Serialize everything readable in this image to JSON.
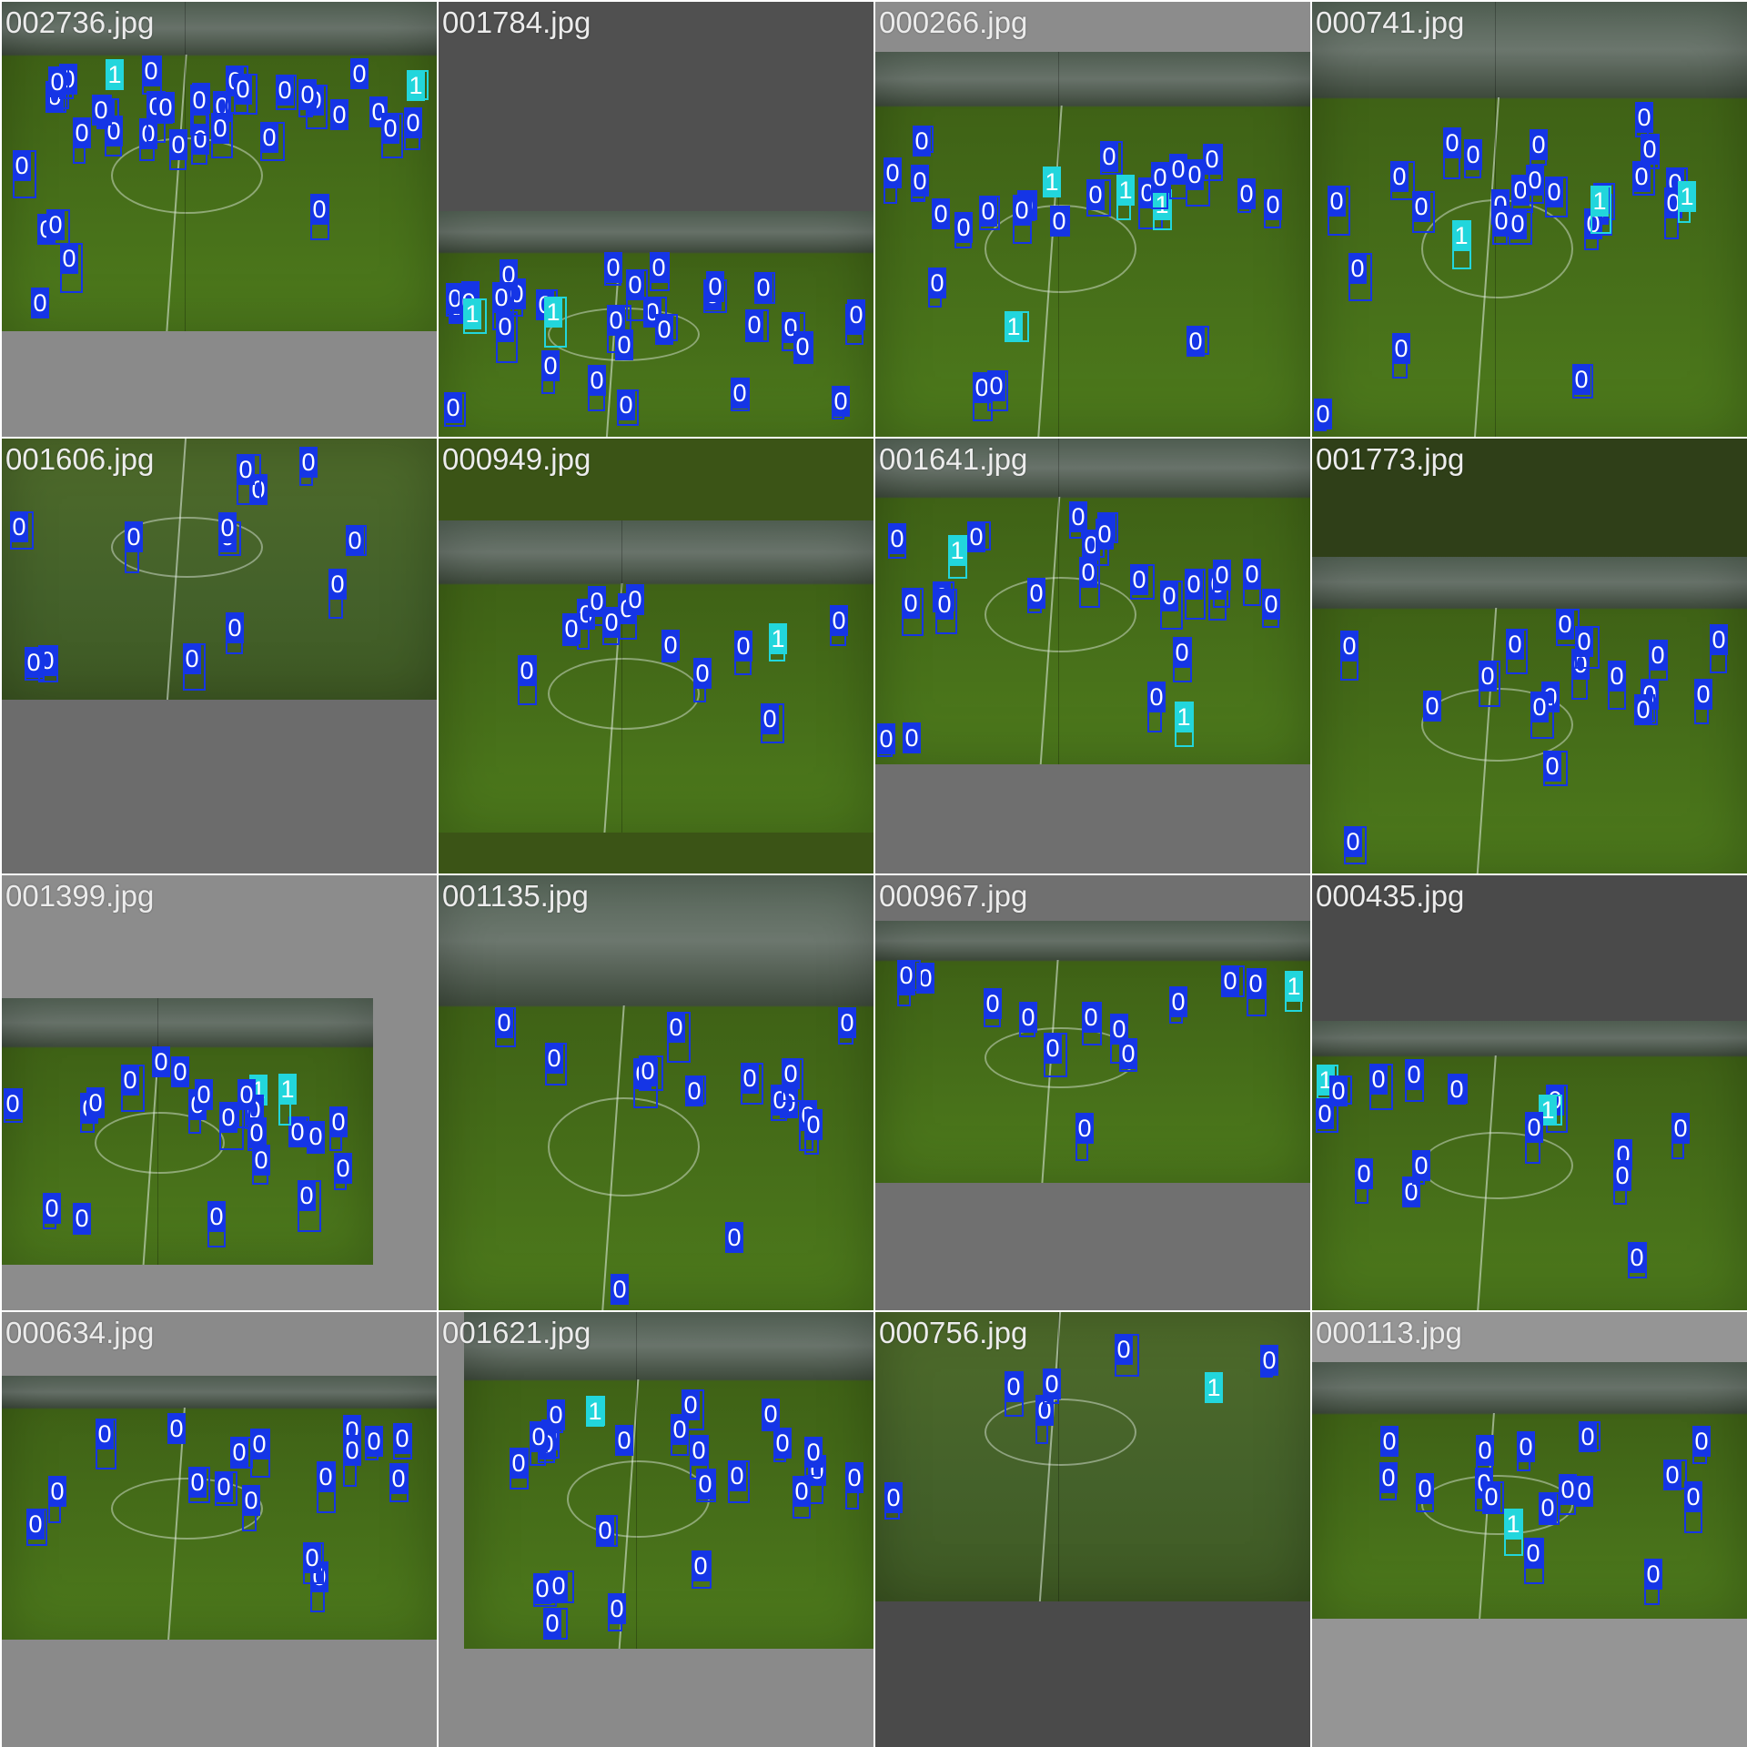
{
  "classes": [
    {
      "id": "0",
      "color": "#1535e6"
    },
    {
      "id": "1",
      "color": "#22d6dc"
    }
  ],
  "tiles": [
    {
      "filename": "002736.jpg",
      "background": "#8a8a8a",
      "labels": [
        "0",
        "0",
        "0",
        "0",
        "0",
        "0",
        "0",
        "0",
        "0",
        "1",
        "0",
        "0",
        "0",
        "0",
        "0",
        "0",
        "0",
        "0",
        "0",
        "0",
        "0",
        "0",
        "0",
        "0",
        "1",
        "0",
        "0",
        "0",
        "0",
        "0",
        "0",
        "0",
        "0",
        "0",
        "0",
        "0"
      ]
    },
    {
      "filename": "001784.jpg",
      "background": "#505050",
      "labels": [
        "0",
        "0",
        "0",
        "0",
        "0",
        "0",
        "1",
        "0",
        "0",
        "0",
        "0",
        "0",
        "0",
        "0",
        "0",
        "0",
        "0",
        "0",
        "0",
        "0",
        "0",
        "0",
        "0",
        "0",
        "1",
        "0",
        "0",
        "0",
        "0",
        "0",
        "0",
        "0"
      ]
    },
    {
      "filename": "000266.jpg",
      "background": "#8c8c8c",
      "labels": [
        "0",
        "0",
        "0",
        "0",
        "0",
        "0",
        "0",
        "1",
        "0",
        "0",
        "1",
        "0",
        "0",
        "0",
        "0",
        "1",
        "0",
        "0",
        "1",
        "0",
        "0",
        "0",
        "0",
        "0",
        "0",
        "0",
        "0"
      ]
    },
    {
      "filename": "000741.jpg",
      "background": "#4c4c4c",
      "labels": [
        "0",
        "0",
        "0",
        "0",
        "0",
        "0",
        "0",
        "0",
        "0",
        "1",
        "0",
        "0",
        "0",
        "0",
        "0",
        "0",
        "0",
        "0",
        "0",
        "1",
        "0",
        "0",
        "0",
        "0",
        "0",
        "0",
        "1"
      ]
    },
    {
      "filename": "001606.jpg",
      "background": "#6c6c6c",
      "labels": [
        "0",
        "0",
        "0",
        "0",
        "0",
        "0",
        "0",
        "0",
        "0",
        "0",
        "0",
        "0",
        "0"
      ]
    },
    {
      "filename": "000949.jpg",
      "background": "#3b5416",
      "labels": [
        "0",
        "0",
        "0",
        "0",
        "0",
        "0",
        "0",
        "0",
        "1",
        "0",
        "0",
        "0",
        "0"
      ]
    },
    {
      "filename": "001641.jpg",
      "background": "#6f6f6f",
      "labels": [
        "0",
        "0",
        "0",
        "0",
        "0",
        "1",
        "0",
        "0",
        "0",
        "0",
        "0",
        "0",
        "0",
        "0",
        "0",
        "0",
        "1",
        "0",
        "0",
        "0",
        "0",
        "0",
        "0",
        "0"
      ]
    },
    {
      "filename": "001773.jpg",
      "background": "#2f3f18",
      "labels": [
        "0",
        "0",
        "0",
        "0",
        "0",
        "0",
        "0",
        "0",
        "0",
        "0",
        "0",
        "0",
        "0",
        "0",
        "0",
        "0",
        "0"
      ]
    },
    {
      "filename": "001399.jpg",
      "background": "#8c8c8c",
      "labels": [
        "0",
        "0",
        "0",
        "1",
        "0",
        "0",
        "0",
        "0",
        "0",
        "0",
        "0",
        "0",
        "0",
        "0",
        "1",
        "0",
        "0",
        "0",
        "0",
        "0",
        "0",
        "0",
        "0"
      ]
    },
    {
      "filename": "001135.jpg",
      "background": "#2c3f10",
      "labels": [
        "0",
        "0",
        "0",
        "0",
        "0",
        "0",
        "0",
        "0",
        "0",
        "0",
        "0",
        "0",
        "0",
        "0",
        "0"
      ]
    },
    {
      "filename": "000967.jpg",
      "background": "#707070",
      "labels": [
        "0",
        "1",
        "0",
        "0",
        "0",
        "0",
        "0",
        "0",
        "0",
        "0",
        "0",
        "0",
        "0",
        "0"
      ]
    },
    {
      "filename": "000435.jpg",
      "background": "#4a4a4a",
      "labels": [
        "1",
        "0",
        "0",
        "0",
        "0",
        "0",
        "0",
        "0",
        "0",
        "1",
        "0",
        "0",
        "0",
        "0",
        "0",
        "0"
      ]
    },
    {
      "filename": "000634.jpg",
      "background": "#8a8a8a",
      "labels": [
        "0",
        "0",
        "0",
        "0",
        "0",
        "0",
        "0",
        "0",
        "0",
        "0",
        "0",
        "0",
        "0",
        "0",
        "0",
        "0",
        "0"
      ]
    },
    {
      "filename": "001621.jpg",
      "background": "#8a8a8a",
      "labels": [
        "0",
        "0",
        "0",
        "0",
        "0",
        "0",
        "1",
        "0",
        "0",
        "0",
        "0",
        "0",
        "0",
        "0",
        "0",
        "0",
        "0",
        "0",
        "0",
        "0",
        "0",
        "0",
        "0",
        "0"
      ]
    },
    {
      "filename": "000756.jpg",
      "background": "#4a4a4a",
      "labels": [
        "1",
        "0",
        "0",
        "0",
        "0",
        "0",
        "0"
      ]
    },
    {
      "filename": "000113.jpg",
      "background": "#959595",
      "labels": [
        "0",
        "0",
        "0",
        "0",
        "0",
        "0",
        "0",
        "0",
        "0",
        "0",
        "0",
        "1",
        "0",
        "0",
        "0",
        "0",
        "0"
      ]
    }
  ]
}
